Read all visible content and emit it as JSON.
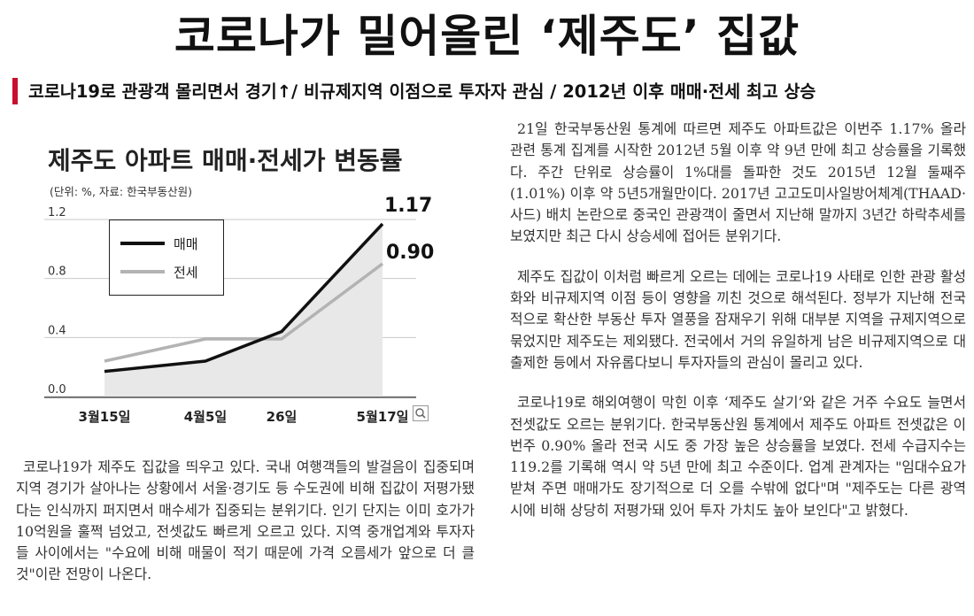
{
  "headline": "코로나가 밀어올린 ‘제주도’ 집값",
  "subheadline": "코로나19로 관광객 몰리면서 경기↑/ 비규제지역 이점으로 투자자 관심 / 2012년 이후 매매·전세 최고 상승",
  "chart_data": {
    "type": "line",
    "title": "제주도 아파트 매매·전세가 변동률",
    "unit_note": "(단위: %, 자료: 한국부동산원)",
    "categories": [
      "3월15일",
      "4월5일",
      "26일",
      "5월17일"
    ],
    "series": [
      {
        "name": "매매",
        "values": [
          0.17,
          0.24,
          0.44,
          1.17
        ],
        "color": "#111111"
      },
      {
        "name": "전세",
        "values": [
          0.24,
          0.39,
          0.39,
          0.9
        ],
        "color": "#b3b3b3"
      }
    ],
    "end_labels": [
      "1.17",
      "0.90"
    ],
    "yticks": [
      "1.2",
      "0.8",
      "0.4",
      "0.0"
    ],
    "ylim": [
      0,
      1.2
    ],
    "grid": true,
    "legend_position": "top-left",
    "area_fill": "#e8e8e8"
  },
  "article": {
    "left_paragraphs": [
      "코로나19가 제주도 집값을 띄우고 있다. 국내 여행객들의 발걸음이 집중되며 지역 경기가 살아나는 상황에서 서울·경기도 등 수도권에 비해 집값이 저평가됐다는 인식까지 퍼지면서 매수세가 집중되는 분위기다. 인기 단지는 이미 호가가 10억원을 훌쩍 넘었고, 전셋값도 빠르게 오르고 있다. 지역 중개업계와 투자자들 사이에서는 \"수요에 비해 매물이 적기 때문에 가격 오름세가 앞으로 더 클 것\"이란 전망이 나온다."
    ],
    "right_paragraphs": [
      "21일 한국부동산원 통계에 따르면 제주도 아파트값은 이번주 1.17% 올라 관련 통계 집계를 시작한 2012년 5월 이후 약 9년 만에 최고 상승률을 기록했다. 주간 단위로 상승률이 1%대를 돌파한 것도 2015년 12월 둘째주(1.01%) 이후 약 5년5개월만이다. 2017년 고고도미사일방어체계(THAAD·사드) 배치 논란으로 중국인 관광객이 줄면서 지난해 말까지 3년간 하락추세를 보였지만 최근 다시 상승세에 접어든 분위기다.",
      "제주도 집값이 이처럼 빠르게 오르는 데에는 코로나19 사태로 인한 관광 활성화와 비규제지역 이점 등이 영향을 끼친 것으로 해석된다. 정부가 지난해 전국적으로 확산한 부동산 투자 열풍을 잠재우기 위해 대부분 지역을 규제지역으로 묶었지만 제주도는 제외됐다. 전국에서 거의 유일하게 남은 비규제지역으로 대출제한 등에서 자유롭다보니 투자자들의 관심이 몰리고 있다.",
      "코로나19로 해외여행이 막힌 이후 ‘제주도 살기’와 같은 거주 수요도 늘면서 전셋값도 오르는 분위기다. 한국부동산원 통계에서 제주도 아파트 전셋값은 이번주 0.90% 올라 전국 시도 중 가장 높은 상승률을 보였다. 전세 수급지수는 119.2를 기록해 역시 약 5년 만에 최고 수준이다. 업계 관계자는 \"임대수요가 받쳐 주면 매매가도 장기적으로 더 오를 수밖에 없다\"며 \"제주도는 다른 광역시에 비해 상당히 저평가돼 있어 투자 가치도 높아 보인다\"고 밝혔다."
    ]
  },
  "icons": {
    "zoom": "zoom-icon"
  }
}
